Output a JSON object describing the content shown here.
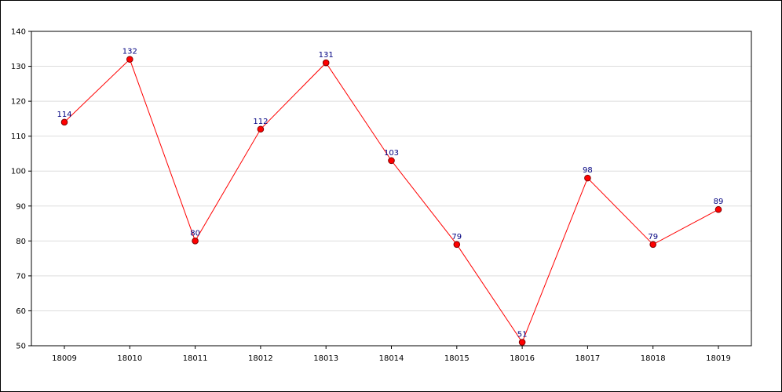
{
  "chart_data": {
    "type": "line",
    "categories": [
      "18009",
      "18010",
      "18011",
      "18012",
      "18013",
      "18014",
      "18015",
      "18016",
      "18017",
      "18018",
      "18019"
    ],
    "series": [
      {
        "values": [
          114,
          132,
          80,
          112,
          131,
          103,
          79,
          51,
          98,
          79,
          89
        ]
      }
    ],
    "y_ticks": [
      "50",
      "60",
      "70",
      "80",
      "90",
      "100",
      "110",
      "120",
      "130",
      "140"
    ],
    "data_labels": [
      "114",
      "132",
      "80",
      "112",
      "131",
      "103",
      "79",
      "51",
      "98",
      "79",
      "89"
    ],
    "ylim": [
      50,
      140
    ],
    "grid": true,
    "legend": "none",
    "colors": {
      "line": "#ff0000",
      "marker": "#ff0000",
      "marker_outline": "#800000",
      "data_label": "#000080",
      "grid": "#dddddd"
    }
  }
}
